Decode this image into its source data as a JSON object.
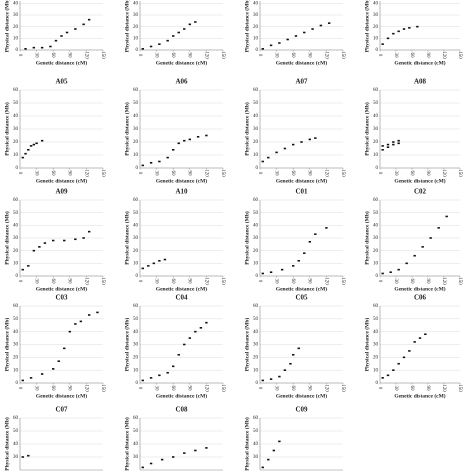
{
  "chart_data": [
    {
      "type": "scatter",
      "x_label": "Genetic distance (cM)",
      "y_label": "Physical distance (Mb)",
      "xlim": [
        0,
        150
      ],
      "xticks": [
        0,
        30,
        60,
        90,
        120,
        150
      ],
      "ylim": [
        0,
        42
      ],
      "yticks": [
        0,
        10,
        20,
        30,
        40
      ],
      "grid": true,
      "color": "#111111",
      "x": [
        10,
        25,
        40,
        55,
        65,
        75,
        85,
        100,
        115,
        125
      ],
      "values": [
        1,
        2,
        2,
        3,
        8,
        12,
        15,
        18,
        22,
        26
      ]
    },
    {
      "type": "scatter",
      "x_label": "Genetic distance (cM)",
      "y_label": "Physical distance (Mb)",
      "xlim": [
        0,
        150
      ],
      "xticks": [
        0,
        30,
        60,
        90,
        120,
        150
      ],
      "ylim": [
        0,
        42
      ],
      "yticks": [
        0,
        10,
        20,
        30,
        40
      ],
      "grid": true,
      "color": "#111111",
      "x": [
        5,
        20,
        35,
        50,
        60,
        70,
        80,
        90,
        100
      ],
      "values": [
        1,
        3,
        5,
        8,
        12,
        15,
        18,
        22,
        24
      ]
    },
    {
      "type": "scatter",
      "x_label": "Genetic distance (cM)",
      "y_label": "Physical distance (Mb)",
      "xlim": [
        0,
        150
      ],
      "xticks": [
        0,
        30,
        60,
        90,
        120,
        150
      ],
      "ylim": [
        0,
        42
      ],
      "yticks": [
        0,
        10,
        20,
        30,
        40
      ],
      "grid": true,
      "color": "#111111",
      "x": [
        5,
        20,
        35,
        50,
        65,
        80,
        95,
        110,
        125
      ],
      "values": [
        1,
        4,
        6,
        9,
        12,
        15,
        18,
        21,
        23
      ]
    },
    {
      "type": "scatter",
      "x_label": "Genetic distance (cM)",
      "y_label": "Physical distance (Mb)",
      "xlim": [
        0,
        150
      ],
      "xticks": [
        0,
        30,
        60,
        90,
        120,
        150
      ],
      "ylim": [
        0,
        42
      ],
      "yticks": [
        0,
        10,
        20,
        30,
        40
      ],
      "grid": true,
      "color": "#111111",
      "x": [
        5,
        15,
        25,
        35,
        45,
        55,
        70
      ],
      "values": [
        5,
        10,
        14,
        16,
        18,
        19,
        20
      ]
    },
    {
      "type": "scatter",
      "title": "A05",
      "x_label": "Genetic distance (cM)",
      "y_label": "Physical distance (Mb)",
      "xlim": [
        0,
        150
      ],
      "xticks": [
        0,
        30,
        60,
        90,
        120,
        150
      ],
      "ylim": [
        0,
        60
      ],
      "yticks": [
        0,
        10,
        20,
        30,
        40,
        50,
        60
      ],
      "grid": true,
      "color": "#111111",
      "x": [
        5,
        10,
        15,
        20,
        25,
        30,
        40
      ],
      "values": [
        8,
        11,
        14,
        17,
        18,
        19,
        21
      ]
    },
    {
      "type": "scatter",
      "title": "A06",
      "x_label": "Genetic distance (cM)",
      "y_label": "Physical distance (Mb)",
      "xlim": [
        0,
        150
      ],
      "xticks": [
        0,
        30,
        60,
        90,
        120,
        150
      ],
      "ylim": [
        0,
        60
      ],
      "yticks": [
        0,
        10,
        20,
        30,
        40,
        50,
        60
      ],
      "grid": true,
      "color": "#111111",
      "x": [
        5,
        20,
        35,
        50,
        60,
        70,
        80,
        90,
        105,
        120
      ],
      "values": [
        2,
        4,
        5,
        8,
        14,
        19,
        21,
        22,
        24,
        25
      ]
    },
    {
      "type": "scatter",
      "title": "A07",
      "x_label": "Genetic distance (cM)",
      "y_label": "Physical distance (Mb)",
      "xlim": [
        0,
        150
      ],
      "xticks": [
        0,
        30,
        60,
        90,
        120,
        150
      ],
      "ylim": [
        0,
        60
      ],
      "yticks": [
        0,
        10,
        20,
        30,
        40,
        50,
        60
      ],
      "grid": true,
      "color": "#111111",
      "x": [
        5,
        15,
        30,
        45,
        60,
        75,
        90,
        100
      ],
      "values": [
        5,
        8,
        12,
        15,
        18,
        20,
        22,
        23
      ]
    },
    {
      "type": "scatter",
      "title": "A08",
      "x_label": "Genetic distance (cM)",
      "y_label": "Physical distance (Mb)",
      "xlim": [
        0,
        150
      ],
      "xticks": [
        0,
        30,
        60,
        90,
        120,
        150
      ],
      "ylim": [
        0,
        60
      ],
      "yticks": [
        0,
        10,
        20,
        30,
        40,
        50,
        60
      ],
      "grid": true,
      "color": "#111111",
      "x": [
        5,
        15,
        25,
        35,
        5,
        15,
        25,
        35
      ],
      "values": [
        14,
        16,
        18,
        19,
        17,
        18,
        20,
        21
      ]
    },
    {
      "type": "scatter",
      "title": "A09",
      "x_label": "Genetic distance (cM)",
      "y_label": "Physical distance (Mb)",
      "xlim": [
        0,
        150
      ],
      "xticks": [
        0,
        30,
        60,
        90,
        120,
        150
      ],
      "ylim": [
        0,
        60
      ],
      "yticks": [
        0,
        10,
        20,
        30,
        40,
        50,
        60
      ],
      "grid": true,
      "color": "#111111",
      "x": [
        5,
        15,
        25,
        35,
        45,
        60,
        80,
        100,
        115,
        125
      ],
      "values": [
        5,
        8,
        20,
        23,
        26,
        28,
        28,
        29,
        30,
        35
      ]
    },
    {
      "type": "scatter",
      "title": "A10",
      "x_label": "Genetic distance (cM)",
      "y_label": "Physical distance (Mb)",
      "xlim": [
        0,
        150
      ],
      "xticks": [
        0,
        30,
        60,
        90,
        120,
        150
      ],
      "ylim": [
        0,
        60
      ],
      "yticks": [
        0,
        10,
        20,
        30,
        40,
        50,
        60
      ],
      "grid": true,
      "color": "#111111",
      "x": [
        5,
        15,
        25,
        35,
        45
      ],
      "values": [
        6,
        8,
        10,
        12,
        13
      ]
    },
    {
      "type": "scatter",
      "title": "C01",
      "x_label": "Genetic distance (cM)",
      "y_label": "Physical distance (Mb)",
      "xlim": [
        0,
        150
      ],
      "xticks": [
        0,
        30,
        60,
        90,
        120,
        150
      ],
      "ylim": [
        0,
        60
      ],
      "yticks": [
        0,
        10,
        20,
        30,
        40,
        50,
        60
      ],
      "grid": true,
      "color": "#111111",
      "x": [
        5,
        20,
        40,
        60,
        70,
        80,
        90,
        100,
        120
      ],
      "values": [
        2,
        3,
        5,
        8,
        12,
        18,
        27,
        33,
        38
      ]
    },
    {
      "type": "scatter",
      "title": "C02",
      "x_label": "Genetic distance (cM)",
      "y_label": "Physical distance (Mb)",
      "xlim": [
        0,
        150
      ],
      "xticks": [
        0,
        30,
        60,
        90,
        120,
        150
      ],
      "ylim": [
        0,
        60
      ],
      "yticks": [
        0,
        10,
        20,
        30,
        40,
        50,
        60
      ],
      "grid": true,
      "color": "#111111",
      "x": [
        5,
        20,
        35,
        50,
        65,
        80,
        95,
        110,
        125
      ],
      "values": [
        2,
        3,
        5,
        10,
        16,
        23,
        30,
        38,
        47
      ]
    },
    {
      "type": "scatter",
      "title": "C03",
      "x_label": "Genetic distance (cM)",
      "y_label": "Physical distance (Mb)",
      "xlim": [
        0,
        150
      ],
      "xticks": [
        0,
        30,
        60,
        90,
        120,
        150
      ],
      "ylim": [
        0,
        60
      ],
      "yticks": [
        0,
        10,
        20,
        30,
        40,
        50,
        60
      ],
      "grid": true,
      "color": "#111111",
      "x": [
        5,
        20,
        40,
        60,
        70,
        80,
        90,
        100,
        110,
        125,
        140
      ],
      "values": [
        2,
        4,
        7,
        11,
        17,
        27,
        40,
        46,
        48,
        53,
        55
      ]
    },
    {
      "type": "scatter",
      "title": "C04",
      "x_label": "Genetic distance (cM)",
      "y_label": "Physical distance (Mb)",
      "xlim": [
        0,
        150
      ],
      "xticks": [
        0,
        30,
        60,
        90,
        120,
        150
      ],
      "ylim": [
        0,
        60
      ],
      "yticks": [
        0,
        10,
        20,
        30,
        40,
        50,
        60
      ],
      "grid": true,
      "color": "#111111",
      "x": [
        5,
        20,
        35,
        50,
        60,
        70,
        80,
        90,
        100,
        110,
        120
      ],
      "values": [
        2,
        4,
        6,
        8,
        13,
        22,
        30,
        35,
        40,
        43,
        47
      ]
    },
    {
      "type": "scatter",
      "title": "C05",
      "x_label": "Genetic distance (cM)",
      "y_label": "Physical distance (Mb)",
      "xlim": [
        0,
        150
      ],
      "xticks": [
        0,
        30,
        60,
        90,
        120,
        150
      ],
      "ylim": [
        0,
        60
      ],
      "yticks": [
        0,
        10,
        20,
        30,
        40,
        50,
        60
      ],
      "grid": true,
      "color": "#111111",
      "x": [
        5,
        20,
        35,
        45,
        55,
        60,
        70
      ],
      "values": [
        2,
        3,
        5,
        10,
        15,
        22,
        27
      ]
    },
    {
      "type": "scatter",
      "title": "C06",
      "x_label": "Genetic distance (cM)",
      "y_label": "Physical distance (Mb)",
      "xlim": [
        0,
        150
      ],
      "xticks": [
        0,
        30,
        60,
        90,
        120,
        150
      ],
      "ylim": [
        0,
        60
      ],
      "yticks": [
        0,
        10,
        20,
        30,
        40,
        50,
        60
      ],
      "grid": true,
      "color": "#111111",
      "x": [
        5,
        15,
        25,
        35,
        45,
        55,
        65,
        75,
        85
      ],
      "values": [
        4,
        6,
        10,
        15,
        20,
        25,
        32,
        35,
        38
      ]
    },
    {
      "type": "scatter",
      "title": "C07",
      "y_label": "Physical distance (Mb)",
      "xlim": [
        0,
        150
      ],
      "ylim": [
        20,
        60
      ],
      "yticks": [
        30,
        40,
        50,
        60
      ],
      "grid": true,
      "color": "#111111",
      "x": [
        5,
        15
      ],
      "values": [
        30,
        31
      ]
    },
    {
      "type": "scatter",
      "title": "C08",
      "y_label": "Physical distance (Mb)",
      "xlim": [
        0,
        150
      ],
      "ylim": [
        20,
        60
      ],
      "yticks": [
        30,
        40,
        50,
        60
      ],
      "grid": true,
      "color": "#111111",
      "x": [
        5,
        20,
        40,
        60,
        80,
        100,
        120
      ],
      "values": [
        22,
        25,
        28,
        30,
        33,
        35,
        37
      ]
    },
    {
      "type": "scatter",
      "title": "C09",
      "y_label": "Physical distance (Mb)",
      "xlim": [
        0,
        150
      ],
      "ylim": [
        20,
        60
      ],
      "yticks": [
        30,
        40,
        50,
        60
      ],
      "grid": true,
      "color": "#111111",
      "x": [
        5,
        15,
        25,
        35
      ],
      "values": [
        22,
        28,
        35,
        42
      ]
    }
  ]
}
